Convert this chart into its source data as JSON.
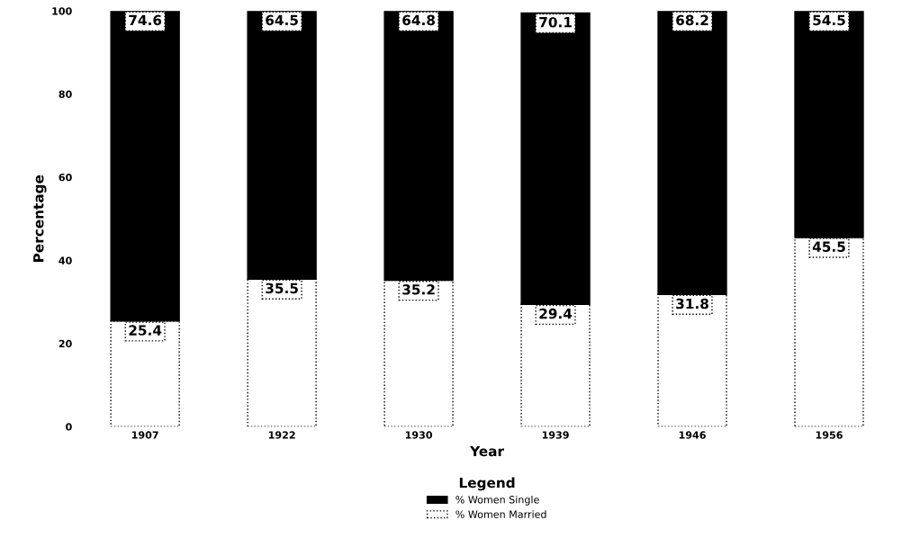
{
  "chart_data": {
    "type": "bar",
    "stacked": true,
    "xlabel": "Year",
    "ylabel": "Percentage",
    "legend_title": "Legend",
    "legend": "bottom",
    "grid": false,
    "data_labels": true,
    "categories": [
      "1907",
      "1922",
      "1930",
      "1939",
      "1946",
      "1956"
    ],
    "series": [
      {
        "name": "% Women Married",
        "color": "#ffffff",
        "values": [
          25.4,
          35.5,
          35.2,
          29.4,
          31.8,
          45.5
        ]
      },
      {
        "name": "% Women Single",
        "color": "#000000",
        "values": [
          74.6,
          64.5,
          64.8,
          70.1,
          68.2,
          54.5
        ]
      }
    ],
    "ylim": [
      0,
      100
    ],
    "yticks": [
      0,
      20,
      40,
      60,
      80,
      100
    ]
  }
}
